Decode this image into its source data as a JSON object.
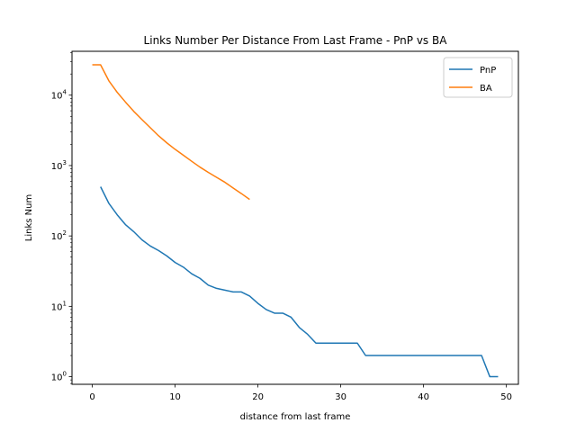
{
  "chart_data": {
    "type": "line",
    "title": "Links Number Per Distance From Last Frame - PnP vs BA",
    "xlabel": "distance from last frame",
    "ylabel": "Links Num",
    "xlim": [
      -2.45,
      51.45
    ],
    "ylim": [
      0.78,
      42000
    ],
    "yscale": "log",
    "grid": false,
    "legend_position": "top-right",
    "x_ticks": [
      0,
      10,
      20,
      30,
      40,
      50
    ],
    "y_ticks": [
      1,
      10,
      100,
      1000,
      10000
    ],
    "series": [
      {
        "name": "PnP",
        "color": "#1f77b4",
        "x": [
          1,
          2,
          3,
          4,
          5,
          6,
          7,
          8,
          9,
          10,
          11,
          12,
          13,
          14,
          15,
          16,
          17,
          18,
          19,
          20,
          21,
          22,
          23,
          24,
          25,
          26,
          27,
          28,
          29,
          30,
          31,
          32,
          33,
          34,
          35,
          36,
          37,
          38,
          39,
          40,
          41,
          42,
          43,
          44,
          45,
          46,
          47,
          48,
          49
        ],
        "y": [
          500,
          290,
          200,
          145,
          115,
          88,
          72,
          62,
          52,
          42,
          36,
          29,
          25,
          20,
          18,
          17,
          16,
          16,
          14,
          11,
          9,
          8,
          8,
          7,
          5,
          4,
          3,
          3,
          3,
          3,
          3,
          3,
          2,
          2,
          2,
          2,
          2,
          2,
          2,
          2,
          2,
          2,
          2,
          2,
          2,
          2,
          2,
          1,
          1
        ]
      },
      {
        "name": "BA",
        "color": "#ff7f0e",
        "x": [
          0,
          1,
          2,
          3,
          4,
          5,
          6,
          7,
          8,
          9,
          10,
          11,
          12,
          13,
          14,
          15,
          16,
          17,
          18,
          19
        ],
        "y": [
          27000,
          27000,
          16000,
          11000,
          8000,
          5900,
          4500,
          3450,
          2650,
          2100,
          1700,
          1400,
          1150,
          950,
          800,
          680,
          580,
          480,
          400,
          330
        ]
      }
    ]
  }
}
